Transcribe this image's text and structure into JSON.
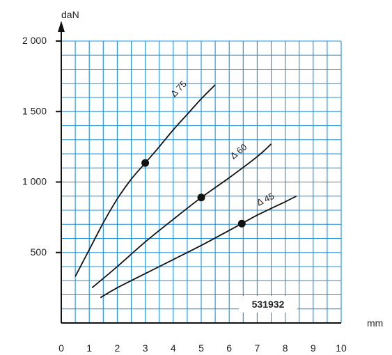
{
  "chart_data": {
    "type": "line",
    "xlabel": "mm",
    "ylabel": "daN",
    "xlim": [
      0,
      10
    ],
    "ylim": [
      0,
      2000
    ],
    "x_ticks": [
      "0",
      "1",
      "2",
      "3",
      "4",
      "5",
      "6",
      "7",
      "8",
      "9",
      "10"
    ],
    "y_ticks": [
      {
        "value": 500,
        "label": "500"
      },
      {
        "value": 1000,
        "label": "1 000"
      },
      {
        "value": 1500,
        "label": "1 500"
      },
      {
        "value": 2000,
        "label": "2 000"
      }
    ],
    "grid": true,
    "grid_color": "#1e90d6",
    "reference_label": "531932",
    "series": [
      {
        "name": "Δ 75",
        "points": [
          [
            0.5,
            330
          ],
          [
            1,
            520
          ],
          [
            1.5,
            710
          ],
          [
            2,
            880
          ],
          [
            2.5,
            1020
          ],
          [
            3,
            1135
          ],
          [
            3.5,
            1250
          ],
          [
            4,
            1370
          ],
          [
            4.5,
            1480
          ],
          [
            5,
            1590
          ],
          [
            5.5,
            1690
          ]
        ],
        "marker": [
          3,
          1135
        ],
        "label_anchor": [
          4.05,
          1600
        ]
      },
      {
        "name": "Δ 60",
        "points": [
          [
            1.1,
            250
          ],
          [
            2,
            400
          ],
          [
            3,
            575
          ],
          [
            4,
            735
          ],
          [
            5,
            890
          ],
          [
            6,
            1030
          ],
          [
            7,
            1180
          ],
          [
            7.5,
            1270
          ]
        ],
        "marker": [
          5,
          890
        ],
        "label_anchor": [
          6.15,
          1160
        ]
      },
      {
        "name": "Δ 45",
        "points": [
          [
            1.4,
            180
          ],
          [
            2,
            250
          ],
          [
            3,
            350
          ],
          [
            4,
            450
          ],
          [
            5,
            550
          ],
          [
            6.45,
            705
          ],
          [
            7,
            765
          ],
          [
            8,
            860
          ],
          [
            8.4,
            900
          ]
        ],
        "marker": [
          6.45,
          705
        ],
        "label_anchor": [
          7.05,
          830
        ]
      }
    ]
  }
}
